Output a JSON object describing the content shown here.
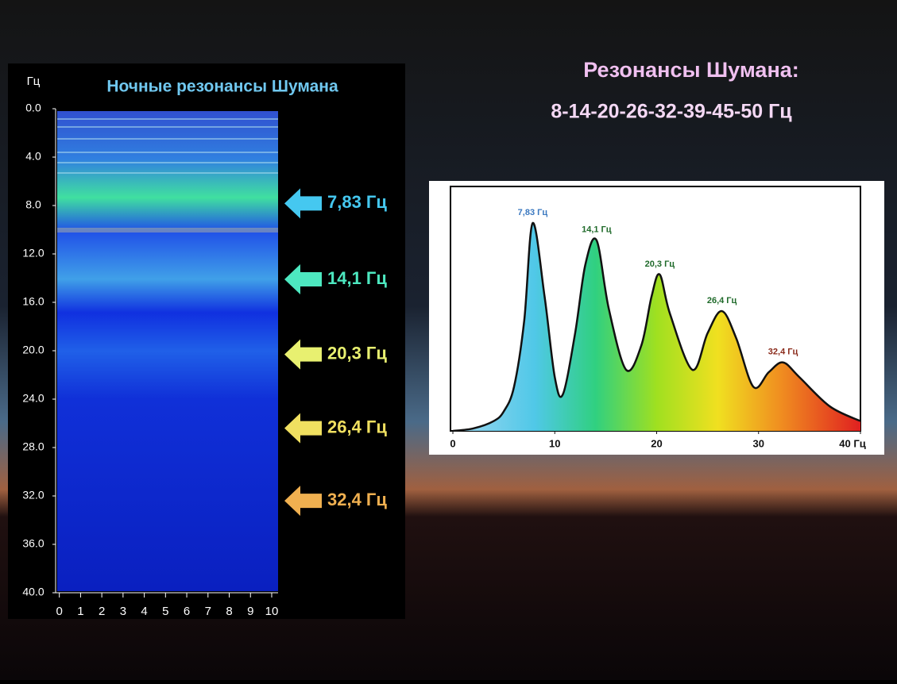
{
  "title": "Резонансы Шумана:",
  "subtitle": "8-14-20-26-32-39-45-50 Гц",
  "chart_data": [
    {
      "type": "spectrogram",
      "title": "Ночные резонансы Шумана",
      "y_label": "Гц",
      "ylim": [
        0,
        40
      ],
      "xlim": [
        -0.1,
        10.3
      ],
      "yticks": [
        {
          "value": 0,
          "label": "0.0"
        },
        {
          "value": 4,
          "label": "4.0"
        },
        {
          "value": 8,
          "label": "8.0"
        },
        {
          "value": 12,
          "label": "12.0"
        },
        {
          "value": 16,
          "label": "16.0"
        },
        {
          "value": 20,
          "label": "20.0"
        },
        {
          "value": 24,
          "label": "24.0"
        },
        {
          "value": 28,
          "label": "28.0"
        },
        {
          "value": 32,
          "label": "32.0"
        },
        {
          "value": 36,
          "label": "36.0"
        },
        {
          "value": 40,
          "label": "40.0"
        }
      ],
      "xticks": [
        0,
        1,
        2,
        3,
        4,
        5,
        6,
        7,
        8,
        9,
        10
      ],
      "annotations": [
        {
          "value": 7.83,
          "label": "7,83 Гц",
          "color": "#45c8f0"
        },
        {
          "value": 14.1,
          "label": "14,1 Гц",
          "color": "#4de8c0"
        },
        {
          "value": 20.3,
          "label": "20,3 Гц",
          "color": "#e8f070"
        },
        {
          "value": 26.4,
          "label": "26,4 Гц",
          "color": "#f0e060"
        },
        {
          "value": 32.4,
          "label": "32,4 Гц",
          "color": "#f0b050"
        }
      ]
    },
    {
      "type": "line",
      "x": [
        0,
        2,
        4,
        5,
        6,
        7,
        7.83,
        9,
        10,
        10.8,
        12,
        13,
        14.1,
        15.3,
        17,
        18.5,
        19.5,
        20.3,
        21.3,
        23.5,
        25,
        26.4,
        27.8,
        29.5,
        31,
        32.4,
        34,
        37,
        40
      ],
      "values": [
        0,
        1,
        4,
        8,
        18,
        45,
        85,
        55,
        22,
        15,
        40,
        68,
        78,
        50,
        25,
        35,
        55,
        64,
        48,
        25,
        40,
        49,
        38,
        18,
        24,
        28,
        22,
        10,
        4
      ],
      "xlim": [
        0,
        40
      ],
      "ylim": [
        0,
        100
      ],
      "xticks": [
        0,
        10,
        20,
        30,
        {
          "value": 40,
          "label": "40 Гц"
        }
      ],
      "annotations": [
        {
          "x": 7.83,
          "label": "7,83 Гц",
          "color": "#3a78c0"
        },
        {
          "x": 14.1,
          "label": "14,1 Гц",
          "color": "#1f6a2a"
        },
        {
          "x": 20.3,
          "label": "20,3 Гц",
          "color": "#1f6a2a"
        },
        {
          "x": 26.4,
          "label": "26,4 Гц",
          "color": "#1f6a2a"
        },
        {
          "x": 32.4,
          "label": "32,4 Гц",
          "color": "#8a2a1a"
        }
      ]
    }
  ]
}
